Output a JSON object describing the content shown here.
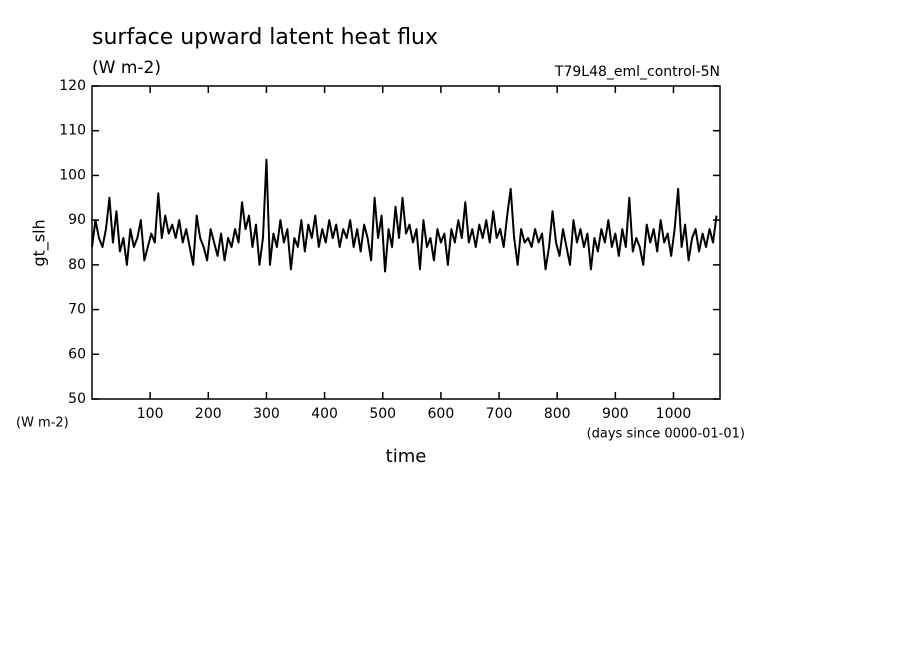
{
  "chart_data": {
    "type": "line",
    "title": "surface upward latent heat flux",
    "subtitle": "(W m-2)",
    "run_label": "T79L48_eml_control-5N",
    "y_label": "gt_slh",
    "y_units": "(W m-2)",
    "x_label": "time",
    "x_units": "(days since 0000-01-01)",
    "xlim": [
      0,
      1080
    ],
    "ylim": [
      50,
      120
    ],
    "xticks": [
      100,
      200,
      300,
      400,
      500,
      600,
      700,
      800,
      900,
      1000
    ],
    "yticks": [
      50,
      60,
      70,
      80,
      90,
      100,
      110,
      120
    ],
    "x": [
      0,
      6,
      12,
      18,
      24,
      30,
      36,
      42,
      48,
      54,
      60,
      66,
      72,
      78,
      84,
      90,
      96,
      102,
      108,
      114,
      120,
      126,
      132,
      138,
      144,
      150,
      156,
      162,
      168,
      174,
      180,
      186,
      192,
      198,
      204,
      210,
      216,
      222,
      228,
      234,
      240,
      246,
      252,
      258,
      264,
      270,
      276,
      282,
      288,
      294,
      300,
      306,
      312,
      318,
      324,
      330,
      336,
      342,
      348,
      354,
      360,
      366,
      372,
      378,
      384,
      390,
      396,
      402,
      408,
      414,
      420,
      426,
      432,
      438,
      444,
      450,
      456,
      462,
      468,
      474,
      480,
      486,
      492,
      498,
      504,
      510,
      516,
      522,
      528,
      534,
      540,
      546,
      552,
      558,
      564,
      570,
      576,
      582,
      588,
      594,
      600,
      606,
      612,
      618,
      624,
      630,
      636,
      642,
      648,
      654,
      660,
      666,
      672,
      678,
      684,
      690,
      696,
      702,
      708,
      714,
      720,
      726,
      732,
      738,
      744,
      750,
      756,
      762,
      768,
      774,
      780,
      786,
      792,
      798,
      804,
      810,
      816,
      822,
      828,
      834,
      840,
      846,
      852,
      858,
      864,
      870,
      876,
      882,
      888,
      894,
      900,
      906,
      912,
      918,
      924,
      930,
      936,
      942,
      948,
      954,
      960,
      966,
      972,
      978,
      984,
      990,
      996,
      1002,
      1008,
      1014,
      1020,
      1026,
      1032,
      1038,
      1044,
      1050,
      1056,
      1062,
      1068,
      1074
    ],
    "series": [
      {
        "color": "#000000",
        "values": [
          84,
          90,
          86,
          84,
          88,
          95,
          85,
          92,
          83,
          86,
          80,
          88,
          84,
          86,
          90,
          81,
          84,
          87,
          85,
          96,
          86,
          91,
          87,
          89,
          86,
          90,
          85,
          88,
          84,
          80,
          91,
          86,
          84,
          81,
          88,
          85,
          82,
          87,
          81,
          86,
          84,
          88,
          85,
          94,
          88,
          91,
          84,
          89,
          80,
          86,
          103.5,
          80,
          87,
          84,
          90,
          85,
          88,
          79,
          86,
          84,
          90,
          83,
          89,
          86,
          91,
          84,
          88,
          85,
          90,
          86,
          89,
          84,
          88,
          86,
          90,
          84,
          88,
          83,
          89,
          86,
          81,
          95,
          86,
          91,
          78.5,
          88,
          84,
          93,
          86,
          95,
          87,
          89,
          85,
          88,
          79,
          90,
          84,
          86,
          81,
          88,
          85,
          87,
          80,
          88,
          85,
          90,
          86,
          94,
          85,
          88,
          84,
          89,
          86,
          90,
          85,
          92,
          86,
          88,
          84,
          91,
          97,
          86,
          80,
          88,
          85,
          86,
          84,
          88,
          85,
          87,
          79,
          84,
          92,
          85,
          82,
          88,
          84,
          80,
          90,
          85,
          88,
          84,
          87,
          79,
          86,
          83,
          88,
          85,
          90,
          84,
          87,
          82,
          88,
          84,
          95,
          83,
          86,
          84,
          80,
          89,
          85,
          88,
          83,
          90,
          85,
          87,
          82,
          88,
          97,
          84,
          89,
          81,
          86,
          88,
          83,
          87,
          84,
          88,
          85,
          91
        ]
      }
    ]
  }
}
